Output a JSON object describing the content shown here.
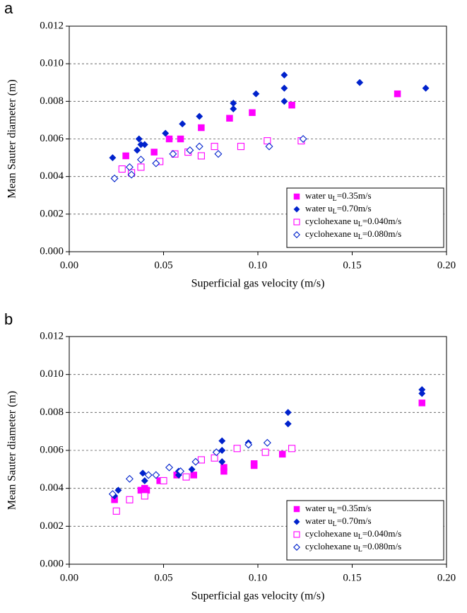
{
  "chart_data": [
    {
      "type": "scatter",
      "panel_label": "a",
      "x_label": "Superficial gas velocity (m/s)",
      "y_label": "Mean Sauter diameter (m)",
      "xlim": [
        0,
        0.2
      ],
      "xticks": [
        {
          "value": 0,
          "label": "0.00"
        },
        0.05,
        {
          "value": 0.1,
          "label": "0.10"
        },
        0.15,
        {
          "value": 0.2,
          "label": "0.20"
        }
      ],
      "ylim": [
        0,
        0.012
      ],
      "yticks": [
        {
          "value": 0,
          "label": "0.000"
        },
        0.002,
        0.004,
        0.006,
        0.008,
        {
          "value": 0.01,
          "label": "0.010"
        },
        0.012
      ],
      "grid": true,
      "legend": "lower right",
      "series": [
        {
          "name": "water uL=0.35m/s",
          "color": "#ff00ff",
          "marker": "filled-square",
          "x": [
            0.03,
            0.045,
            0.053,
            0.059,
            0.07,
            0.085,
            0.097,
            0.118,
            0.174
          ],
          "values": [
            0.0051,
            0.0053,
            0.006,
            0.006,
            0.0066,
            0.0071,
            0.0074,
            0.0078,
            0.0084
          ]
        },
        {
          "name": "water uL=0.70m/s",
          "color": "#0022cc",
          "marker": "filled-diamond",
          "x": [
            0.023,
            0.036,
            0.037,
            0.038,
            0.04,
            0.051,
            0.06,
            0.069,
            0.087,
            0.087,
            0.099,
            0.114,
            0.114,
            0.114,
            0.154,
            0.189
          ],
          "values": [
            0.005,
            0.0054,
            0.006,
            0.0057,
            0.0057,
            0.0063,
            0.0068,
            0.0072,
            0.0076,
            0.0079,
            0.0084,
            0.0094,
            0.0087,
            0.008,
            0.009,
            0.0087
          ]
        },
        {
          "name": "cyclohexane uL=0.040m/s",
          "color": "#ff00ff",
          "marker": "open-square",
          "x": [
            0.028,
            0.033,
            0.038,
            0.048,
            0.056,
            0.063,
            0.07,
            0.077,
            0.091,
            0.105,
            0.123
          ],
          "values": [
            0.0044,
            0.0042,
            0.0045,
            0.0048,
            0.0052,
            0.0053,
            0.0051,
            0.0056,
            0.0056,
            0.0059,
            0.0059
          ]
        },
        {
          "name": "cyclohexane uL=0.080m/s",
          "color": "#0022cc",
          "marker": "open-diamond",
          "x": [
            0.024,
            0.032,
            0.033,
            0.038,
            0.046,
            0.055,
            0.064,
            0.069,
            0.079,
            0.106,
            0.124
          ],
          "values": [
            0.0039,
            0.0045,
            0.0041,
            0.0049,
            0.0047,
            0.0052,
            0.0054,
            0.0056,
            0.0052,
            0.0056,
            0.006
          ]
        }
      ]
    },
    {
      "type": "scatter",
      "panel_label": "b",
      "x_label": "Superficial gas velocity (m/s)",
      "y_label": "Mean Sauter diameter (m)",
      "xlim": [
        0,
        0.2
      ],
      "xticks": [
        {
          "value": 0,
          "label": "0.00"
        },
        0.05,
        {
          "value": 0.1,
          "label": "0.10"
        },
        0.15,
        {
          "value": 0.2,
          "label": "0.20"
        }
      ],
      "ylim": [
        0,
        0.012
      ],
      "yticks": [
        {
          "value": 0,
          "label": "0.000"
        },
        0.002,
        0.004,
        0.006,
        0.008,
        {
          "value": 0.01,
          "label": "0.010"
        },
        0.012
      ],
      "grid": true,
      "legend": "lower right",
      "series": [
        {
          "name": "water uL=0.35m/s",
          "color": "#ff00ff",
          "marker": "filled-square",
          "x": [
            0.024,
            0.032,
            0.038,
            0.04,
            0.041,
            0.048,
            0.057,
            0.066,
            0.082,
            0.082,
            0.098,
            0.098,
            0.113,
            0.187
          ],
          "values": [
            0.0034,
            0.0034,
            0.0039,
            0.004,
            0.0039,
            0.0044,
            0.0047,
            0.0047,
            0.0049,
            0.0051,
            0.0052,
            0.0053,
            0.0058,
            0.0085
          ]
        },
        {
          "name": "water uL=0.70m/s",
          "color": "#0022cc",
          "marker": "filled-diamond",
          "x": [
            0.024,
            0.026,
            0.039,
            0.04,
            0.058,
            0.058,
            0.065,
            0.081,
            0.081,
            0.081,
            0.095,
            0.116,
            0.116,
            0.187,
            0.187
          ],
          "values": [
            0.0036,
            0.0039,
            0.0048,
            0.0044,
            0.0049,
            0.0047,
            0.005,
            0.0065,
            0.006,
            0.0054,
            0.0064,
            0.008,
            0.0074,
            0.0092,
            0.009
          ]
        },
        {
          "name": "cyclohexane uL=0.040m/s",
          "color": "#ff00ff",
          "marker": "open-square",
          "x": [
            0.025,
            0.032,
            0.04,
            0.05,
            0.062,
            0.07,
            0.077,
            0.089,
            0.104,
            0.118
          ],
          "values": [
            0.0028,
            0.0034,
            0.0036,
            0.0044,
            0.0046,
            0.0055,
            0.0056,
            0.0061,
            0.0059,
            0.0061
          ]
        },
        {
          "name": "cyclohexane uL=0.080m/s",
          "color": "#0022cc",
          "marker": "open-diamond",
          "x": [
            0.023,
            0.032,
            0.042,
            0.046,
            0.053,
            0.059,
            0.067,
            0.078,
            0.095,
            0.105
          ],
          "values": [
            0.0037,
            0.0045,
            0.0047,
            0.0047,
            0.0051,
            0.0049,
            0.0054,
            0.0059,
            0.0063,
            0.0064
          ]
        }
      ]
    }
  ]
}
